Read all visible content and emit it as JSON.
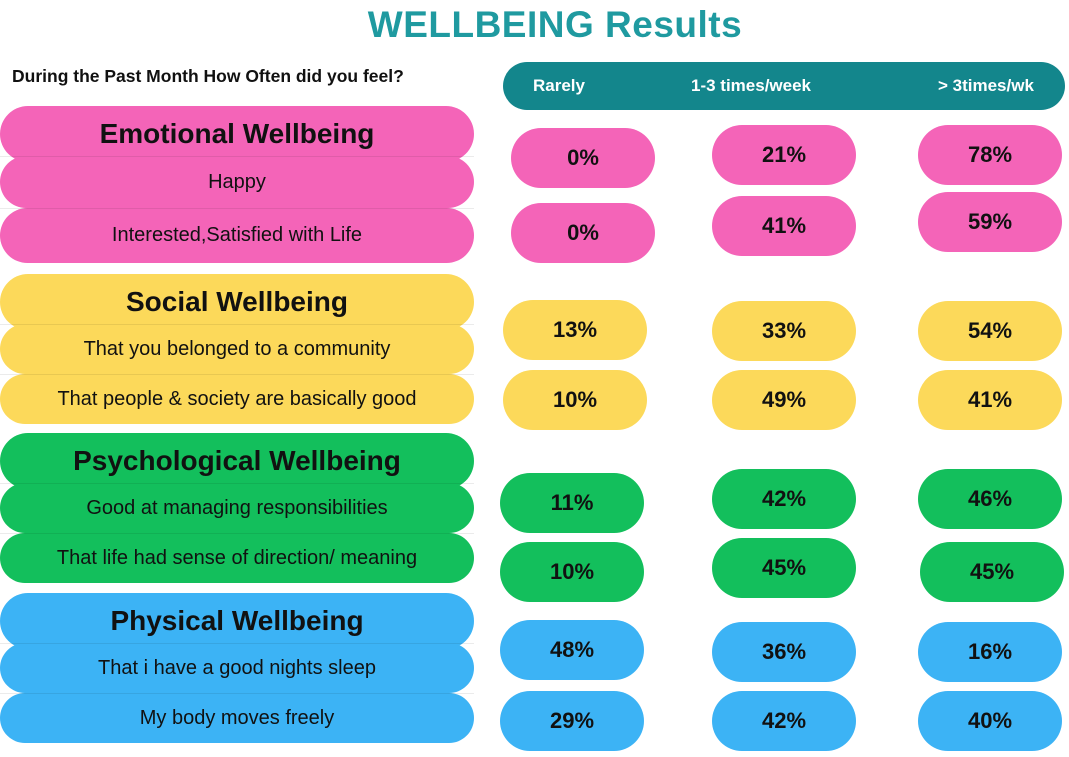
{
  "title": "WELLBEING Results",
  "question": "During the Past Month How Often did you feel?",
  "colors": {
    "header": "#13868c",
    "title": "#1f9aa0",
    "emotional": "#f464b8",
    "social": "#fcd95a",
    "psychological": "#13bf5c",
    "physical": "#3cb3f5"
  },
  "headers": [
    "Rarely",
    "1-3 times/week",
    "> 3times/wk"
  ],
  "categories": [
    "Emotional Wellbeing",
    "Social Wellbeing",
    "Psychological Wellbeing",
    "Physical Wellbeing"
  ],
  "items": [
    "Happy",
    "Interested,Satisfied with Life",
    "That you belonged to a community",
    "That people & society are basically good",
    "Good at managing responsibilities",
    "That life had sense of direction/ meaning",
    "That i have a good nights sleep",
    "My body moves freely"
  ],
  "chart_data": {
    "type": "table",
    "title": "WELLBEING Results",
    "columns": [
      "Rarely",
      "1-3 times/week",
      "> 3times/wk"
    ],
    "groups": [
      {
        "name": "Emotional Wellbeing",
        "rows": [
          {
            "label": "Happy",
            "values": [
              "0%",
              "21%",
              "78%"
            ]
          },
          {
            "label": "Interested,Satisfied with Life",
            "values": [
              "0%",
              "41%",
              "59%"
            ]
          }
        ]
      },
      {
        "name": "Social Wellbeing",
        "rows": [
          {
            "label": "That you belonged to a community",
            "values": [
              "13%",
              "33%",
              "54%"
            ]
          },
          {
            "label": "That people & society are basically good",
            "values": [
              "10%",
              "49%",
              "41%"
            ]
          }
        ]
      },
      {
        "name": "Psychological Wellbeing",
        "rows": [
          {
            "label": "Good at managing responsibilities",
            "values": [
              "11%",
              "42%",
              "46%"
            ]
          },
          {
            "label": "That life had sense of direction/ meaning",
            "values": [
              "10%",
              "45%",
              "45%"
            ]
          }
        ]
      },
      {
        "name": "Physical Wellbeing",
        "rows": [
          {
            "label": "That i have a good nights sleep",
            "values": [
              "48%",
              "36%",
              "16%"
            ]
          },
          {
            "label": "My body moves freely",
            "values": [
              "29%",
              "42%",
              "40%"
            ]
          }
        ]
      }
    ]
  }
}
